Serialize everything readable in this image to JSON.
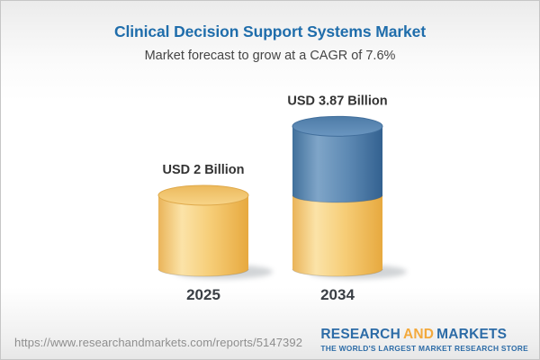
{
  "header": {
    "title": "Clinical Decision Support Systems Market",
    "subtitle": "Market forecast to grow at a CAGR of 7.6%"
  },
  "chart_data": {
    "type": "bar",
    "variant": "3d-stacked-cylinder",
    "title": "Clinical Decision Support Systems Market",
    "subtitle": "Market forecast to grow at a CAGR of 7.6%",
    "unit": "USD Billion",
    "cagr_percent": 7.6,
    "categories": [
      "2025",
      "2034"
    ],
    "series": [
      {
        "name": "yellow",
        "values": [
          2,
          2
        ]
      },
      {
        "name": "blue",
        "values": [
          0,
          1.87
        ]
      }
    ],
    "totals": [
      2,
      3.87
    ],
    "bar_labels": [
      "USD 2 Billion",
      "USD 3.87 Billion"
    ],
    "ylim": [
      0,
      4.4
    ],
    "grid": false,
    "legend": false,
    "xlabel": "",
    "ylabel": ""
  },
  "footer": {
    "url": "https://www.researchandmarkets.com/reports/5147392",
    "logo": {
      "word1": "RESEARCH",
      "word2": "AND",
      "word3": "MARKETS",
      "tagline": "THE WORLD'S LARGEST MARKET RESEARCH STORE"
    }
  },
  "colors": {
    "title_blue": "#1f6dab",
    "subtitle_gray": "#454545",
    "text_dark": "#333333",
    "year_label": "#3a3f45",
    "url_gray": "#8e8e8e",
    "logo_blue": "#2d6ca7",
    "logo_orange": "#f3a93c",
    "bar_yellow": "#f5c96f",
    "bar_blue": "#567fab",
    "shadow": "#9aa0a6",
    "yellow_body_stops": [
      "#EAB459",
      "#FBE3A8",
      "#F6CD77",
      "#E7A93F"
    ],
    "blue_body_stops": [
      "#41709B",
      "#7FA5C8",
      "#5D89B3",
      "#336190"
    ],
    "yellow_cap_stops": [
      "#ECB95C",
      "#F7D488"
    ],
    "blue_cap_stops": [
      "#4D7BA7",
      "#6B96C0"
    ],
    "yellow_cap_rim": "#DFA94A",
    "blue_cap_rim": "#426F9C"
  }
}
